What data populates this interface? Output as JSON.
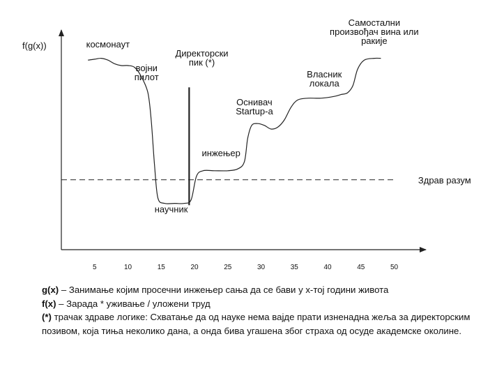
{
  "chart_data": {
    "type": "line",
    "ylabel": "f(g(x))",
    "x_ticks": [
      5,
      10,
      15,
      20,
      25,
      30,
      35,
      40,
      45,
      50
    ],
    "xlim": [
      0,
      51
    ],
    "ylim": [
      0,
      100
    ],
    "series": [
      {
        "points": [
          [
            4,
            88
          ],
          [
            5,
            88.5
          ],
          [
            6,
            89
          ],
          [
            7,
            88
          ],
          [
            8,
            86
          ],
          [
            9,
            85
          ],
          [
            10,
            85
          ],
          [
            11,
            84
          ],
          [
            12,
            79
          ],
          [
            13,
            70
          ],
          [
            13.5,
            55
          ],
          [
            14,
            30
          ],
          [
            14.5,
            12
          ],
          [
            15.5,
            9
          ],
          [
            17,
            9
          ],
          [
            18.5,
            9
          ],
          [
            19.5,
            11
          ],
          [
            20.3,
            24
          ],
          [
            21.3,
            27
          ],
          [
            23,
            27
          ],
          [
            25,
            27
          ],
          [
            26.5,
            28
          ],
          [
            27.5,
            32
          ],
          [
            28,
            45
          ],
          [
            28.6,
            52
          ],
          [
            29.5,
            53
          ],
          [
            30.5,
            52
          ],
          [
            31.5,
            50
          ],
          [
            32.5,
            51
          ],
          [
            33.5,
            55
          ],
          [
            34.5,
            62
          ],
          [
            35.5,
            66
          ],
          [
            37,
            67
          ],
          [
            39,
            67
          ],
          [
            41,
            68
          ],
          [
            42,
            69
          ],
          [
            43,
            70
          ],
          [
            43.8,
            74
          ],
          [
            44.5,
            83
          ],
          [
            45.5,
            88
          ],
          [
            47,
            89
          ],
          [
            48,
            89
          ]
        ]
      }
    ],
    "reference_line": {
      "y": 22,
      "label": "Здрав разум",
      "style": "dashed"
    },
    "vertical_line": {
      "x": 19.2,
      "y_top": 73
    },
    "annotations": [
      {
        "text": "космонаут",
        "x": 7,
        "y": 95
      },
      {
        "text": "војни",
        "x": 12.8,
        "y": 82
      },
      {
        "text": "пилот",
        "x": 12.8,
        "y": 77
      },
      {
        "text": "Директорски",
        "x": 21.1,
        "y": 90
      },
      {
        "text": "пик (*)",
        "x": 21.1,
        "y": 85
      },
      {
        "text": "инжењер",
        "x": 24,
        "y": 35
      },
      {
        "text": "Оснивач",
        "x": 29,
        "y": 63
      },
      {
        "text": "Startup-a",
        "x": 29,
        "y": 58
      },
      {
        "text": "Власник",
        "x": 39.5,
        "y": 78.5
      },
      {
        "text": "локала",
        "x": 39.5,
        "y": 73.5
      },
      {
        "text": "Самостални",
        "x": 47,
        "y": 107
      },
      {
        "text": "произвођач вина или",
        "x": 47,
        "y": 102
      },
      {
        "text": "ракије",
        "x": 47,
        "y": 97
      },
      {
        "text": "научник",
        "x": 16.5,
        "y": 4
      }
    ]
  },
  "notes": {
    "line1_label": "g(x)",
    "line1_text": " – Занимање којим просечни инжењер сања да се бави у x-тој години живота",
    "line2_label": "f(x)",
    "line2_text": " – Зарада * уживање / уложени труд",
    "line3_label": "(*)",
    "line3_text": " трачак здраве логике: Схватање да од науке нема вајде прати изненадна жеља за директорским позивом, која тиња неколико дана, а онда бива угашена због страха од осуде академске околине."
  }
}
